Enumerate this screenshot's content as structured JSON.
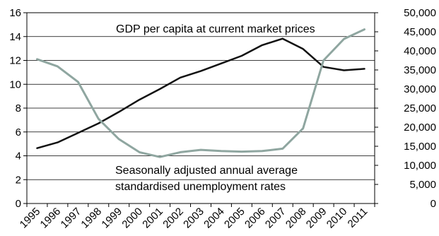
{
  "chart_data": {
    "type": "line",
    "title": "",
    "categories": [
      "1995",
      "1996",
      "1997",
      "1998",
      "1999",
      "2000",
      "2001",
      "2002",
      "2003",
      "2004",
      "2005",
      "2006",
      "2007",
      "2008",
      "2009",
      "2010",
      "2011"
    ],
    "y_left": {
      "lim": [
        0,
        16
      ],
      "ticks": [
        0,
        2,
        4,
        6,
        8,
        10,
        12,
        14,
        16
      ],
      "tick_labels": [
        "0",
        "2",
        "4",
        "6",
        "8",
        "10",
        "12",
        "14",
        "16"
      ]
    },
    "y_right": {
      "lim": [
        0,
        50000
      ],
      "ticks": [
        0,
        5000,
        10000,
        15000,
        20000,
        25000,
        30000,
        35000,
        40000,
        45000,
        50000
      ],
      "tick_labels": [
        "0",
        "5,000",
        "10,000",
        "15,000",
        "20,000",
        "25,000",
        "30,000",
        "35,000",
        "40,000",
        "45,000",
        "50,000"
      ]
    },
    "grid": true,
    "series": [
      {
        "name": "GDP per capita at current market prices",
        "axis": "right",
        "color": "#111111",
        "values": [
          14500,
          16000,
          18500,
          21000,
          24000,
          27200,
          30000,
          33000,
          34700,
          36700,
          38700,
          41500,
          43200,
          40500,
          35800,
          34900,
          35300
        ]
      },
      {
        "name": "Seasonally adjusted annual average standardised unemployment rates",
        "axis": "left",
        "color": "#8fa6a0",
        "values": [
          12.1,
          11.5,
          10.2,
          7.1,
          5.4,
          4.3,
          3.9,
          4.3,
          4.5,
          4.4,
          4.35,
          4.4,
          4.6,
          6.3,
          12.0,
          13.8,
          14.6
        ]
      }
    ],
    "annotations": {
      "gdp": "GDP per capita at current market prices",
      "unemp_line1": "Seasonally adjusted annual average",
      "unemp_line2": "standardised unemployment rates"
    }
  }
}
